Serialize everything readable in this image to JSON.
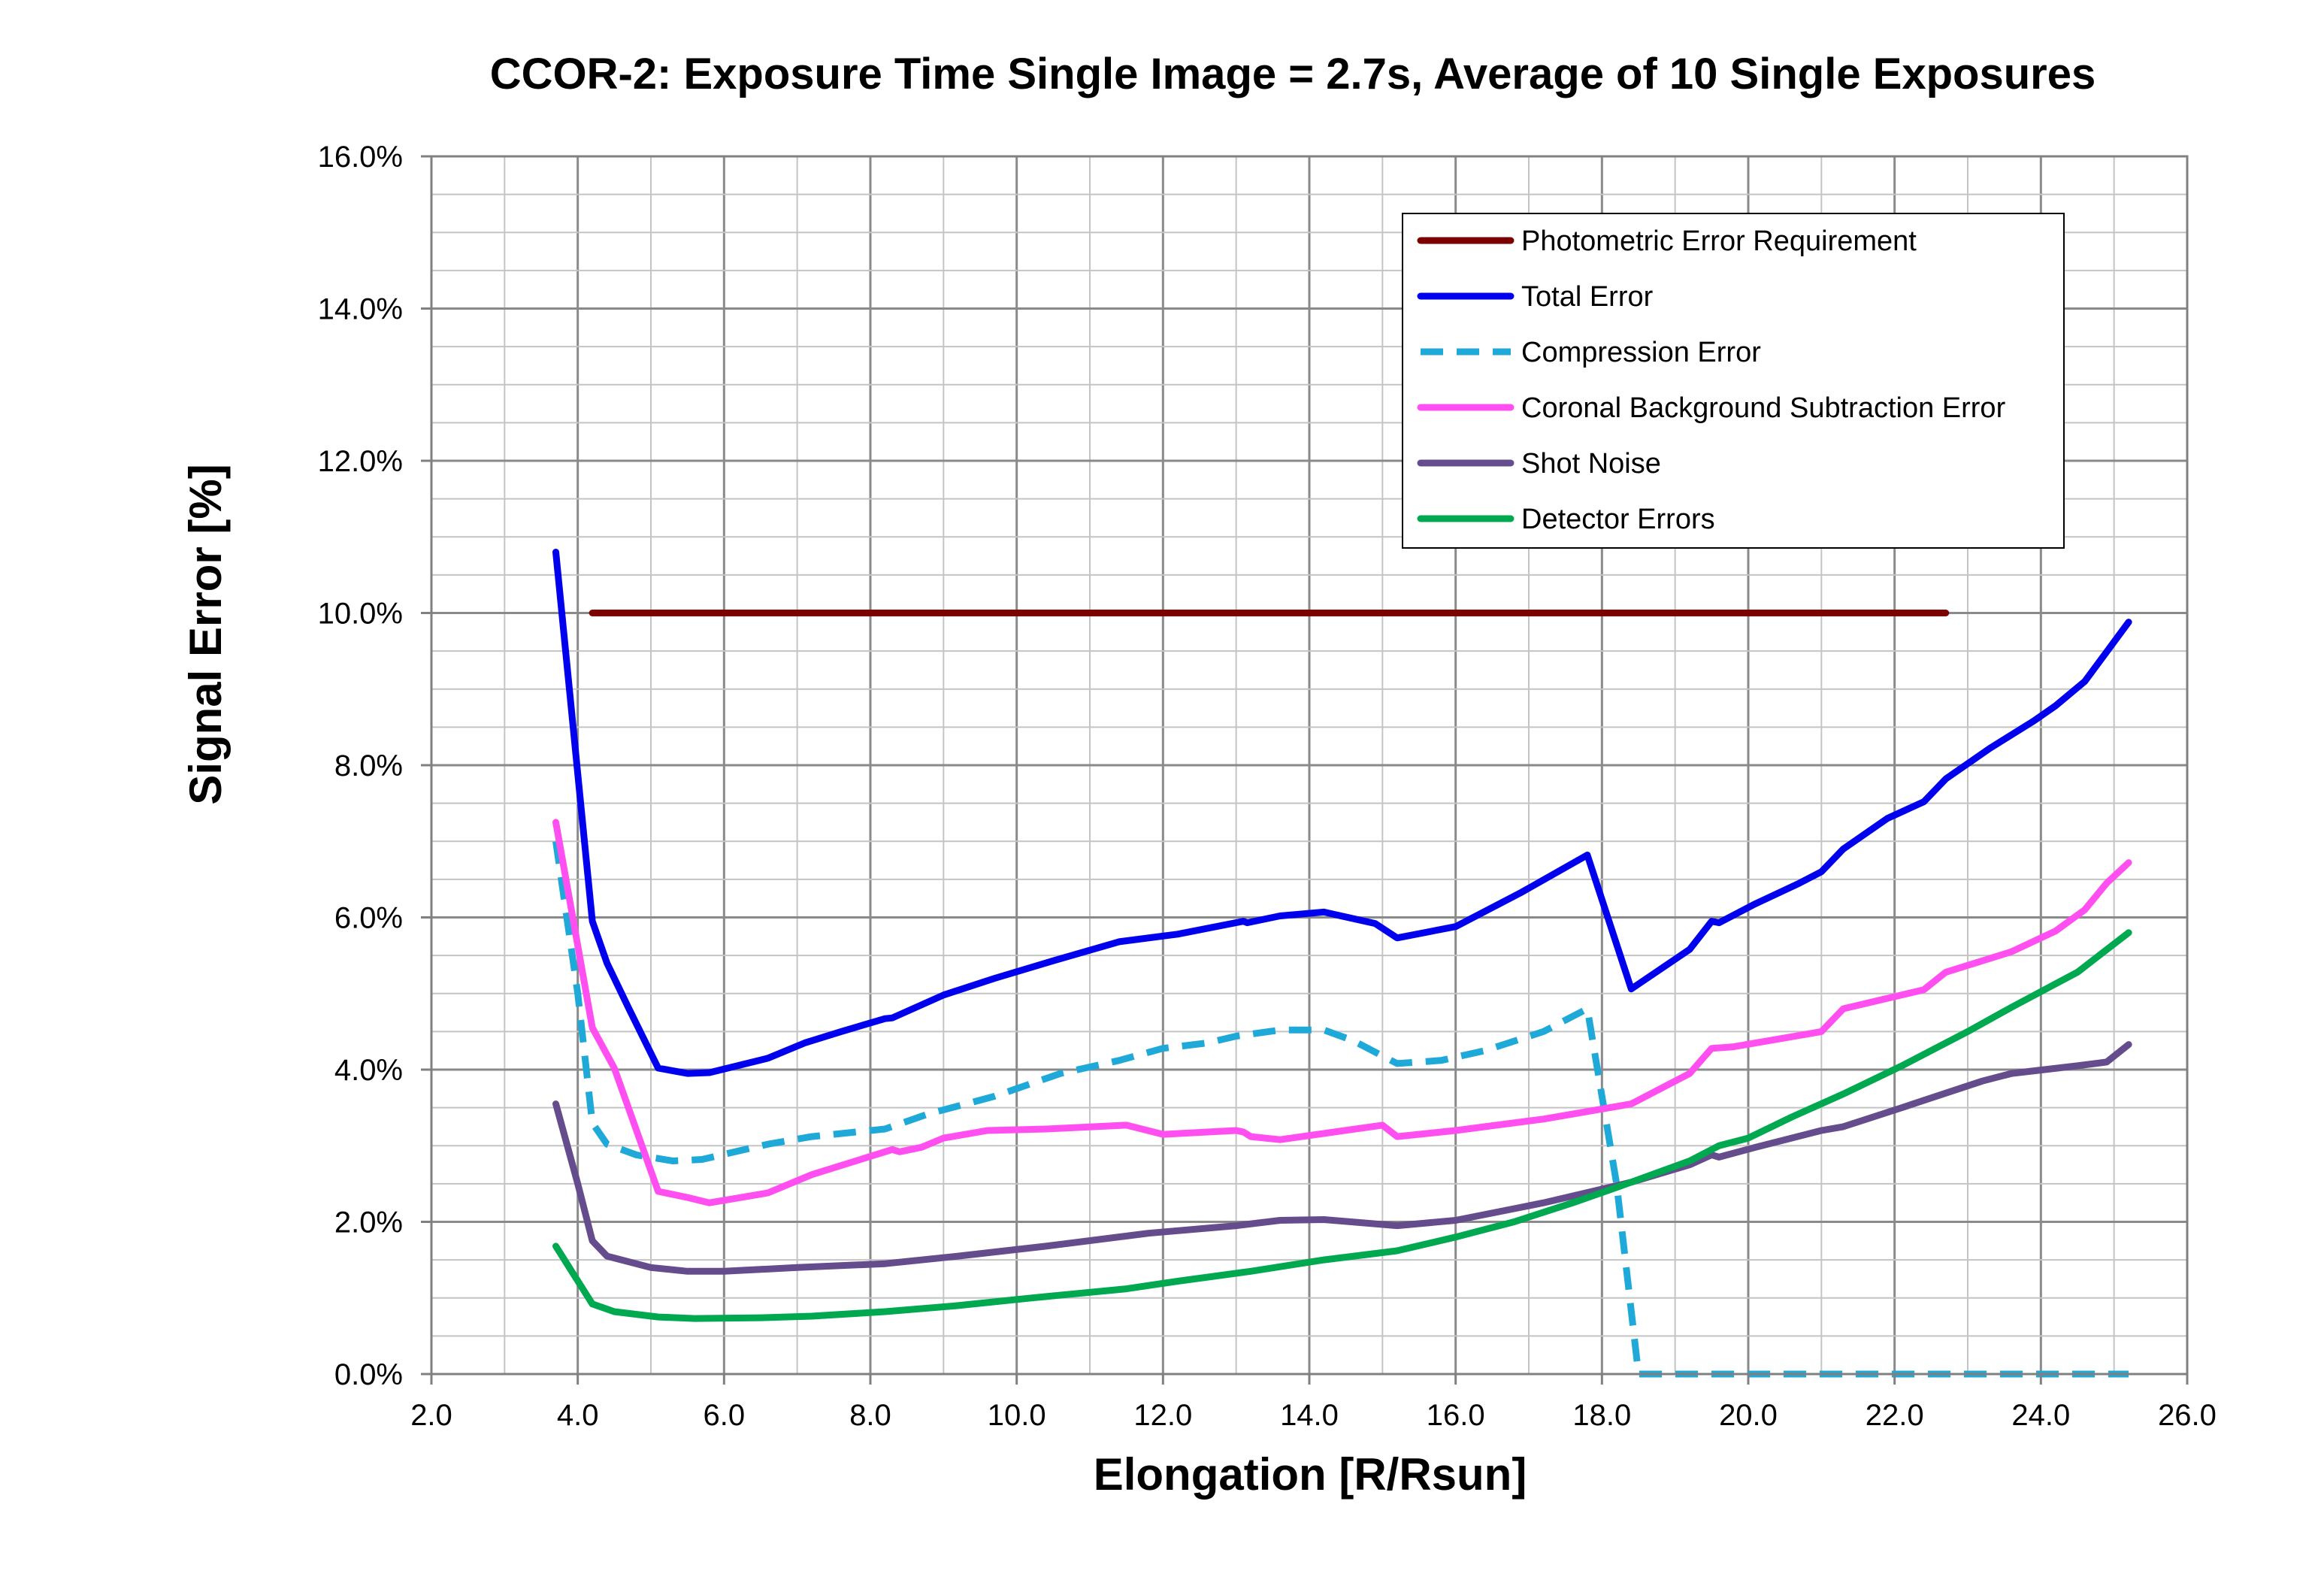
{
  "chart_data": {
    "type": "line",
    "title": "CCOR-2: Exposure Time Single Image = 2.7s, Average of 10 Single Exposures",
    "xlabel": "Elongation [R/Rsun]",
    "ylabel": "Signal Error [%]",
    "xlim": [
      2.0,
      26.0
    ],
    "ylim": [
      0.0,
      16.0
    ],
    "x_major_step": 2.0,
    "x_minor_step": 1.0,
    "y_major_step": 2.0,
    "y_minor_step": 0.5,
    "x_tick_labels": [
      "2.0",
      "4.0",
      "6.0",
      "8.0",
      "10.0",
      "12.0",
      "14.0",
      "16.0",
      "18.0",
      "20.0",
      "22.0",
      "24.0",
      "26.0"
    ],
    "y_tick_labels": [
      "0.0%",
      "2.0%",
      "4.0%",
      "6.0%",
      "8.0%",
      "10.0%",
      "12.0%",
      "14.0%",
      "16.0%"
    ],
    "grid": true,
    "legend_position": "top-right",
    "series": [
      {
        "name": "Photometric Error Requirement",
        "color": "#7b0000",
        "dashed": false,
        "points": [
          [
            4.2,
            10.0
          ],
          [
            22.7,
            10.0
          ]
        ]
      },
      {
        "name": "Total Error",
        "color": "#0000ee",
        "dashed": false,
        "points": [
          [
            3.7,
            10.8
          ],
          [
            4.2,
            5.95
          ],
          [
            4.4,
            5.4
          ],
          [
            4.7,
            4.8
          ],
          [
            5.1,
            4.02
          ],
          [
            5.5,
            3.95
          ],
          [
            5.8,
            3.96
          ],
          [
            6.6,
            4.15
          ],
          [
            7.1,
            4.35
          ],
          [
            7.6,
            4.5
          ],
          [
            8.2,
            4.67
          ],
          [
            8.3,
            4.68
          ],
          [
            9.0,
            4.98
          ],
          [
            9.7,
            5.2
          ],
          [
            10.5,
            5.43
          ],
          [
            11.4,
            5.68
          ],
          [
            12.2,
            5.78
          ],
          [
            13.1,
            5.95
          ],
          [
            13.15,
            5.93
          ],
          [
            13.6,
            6.02
          ],
          [
            14.2,
            6.07
          ],
          [
            14.9,
            5.92
          ],
          [
            15.2,
            5.73
          ],
          [
            16.0,
            5.88
          ],
          [
            16.9,
            6.33
          ],
          [
            17.8,
            6.82
          ],
          [
            18.4,
            5.06
          ],
          [
            19.2,
            5.58
          ],
          [
            19.5,
            5.95
          ],
          [
            19.6,
            5.93
          ],
          [
            20.1,
            6.18
          ],
          [
            20.7,
            6.45
          ],
          [
            21.0,
            6.6
          ],
          [
            21.3,
            6.9
          ],
          [
            21.9,
            7.3
          ],
          [
            22.4,
            7.52
          ],
          [
            22.7,
            7.82
          ],
          [
            23.3,
            8.22
          ],
          [
            23.9,
            8.58
          ],
          [
            24.2,
            8.78
          ],
          [
            24.6,
            9.1
          ],
          [
            25.2,
            9.88
          ]
        ]
      },
      {
        "name": "Compression Error",
        "color": "#1fa9d8",
        "dashed": true,
        "points": [
          [
            3.7,
            7.0
          ],
          [
            4.0,
            5.0
          ],
          [
            4.2,
            3.3
          ],
          [
            4.4,
            3.02
          ],
          [
            4.8,
            2.88
          ],
          [
            5.3,
            2.8
          ],
          [
            5.7,
            2.82
          ],
          [
            6.6,
            3.02
          ],
          [
            7.2,
            3.12
          ],
          [
            8.2,
            3.22
          ],
          [
            8.8,
            3.42
          ],
          [
            9.7,
            3.65
          ],
          [
            10.6,
            3.95
          ],
          [
            11.4,
            4.12
          ],
          [
            12.0,
            4.28
          ],
          [
            12.6,
            4.35
          ],
          [
            13.0,
            4.44
          ],
          [
            13.6,
            4.52
          ],
          [
            14.2,
            4.52
          ],
          [
            14.6,
            4.38
          ],
          [
            15.2,
            4.08
          ],
          [
            15.8,
            4.12
          ],
          [
            16.4,
            4.25
          ],
          [
            17.2,
            4.5
          ],
          [
            17.8,
            4.8
          ],
          [
            18.2,
            2.5
          ],
          [
            18.5,
            0.0
          ],
          [
            25.2,
            0.0
          ]
        ]
      },
      {
        "name": "Coronal Background Subtraction Error",
        "color": "#ff4ff0",
        "dashed": false,
        "points": [
          [
            3.7,
            7.25
          ],
          [
            4.2,
            4.55
          ],
          [
            4.5,
            4.02
          ],
          [
            5.1,
            2.4
          ],
          [
            5.5,
            2.32
          ],
          [
            5.8,
            2.25
          ],
          [
            6.6,
            2.38
          ],
          [
            7.2,
            2.62
          ],
          [
            7.8,
            2.8
          ],
          [
            8.3,
            2.95
          ],
          [
            8.4,
            2.92
          ],
          [
            8.7,
            2.98
          ],
          [
            9.0,
            3.1
          ],
          [
            9.6,
            3.2
          ],
          [
            10.4,
            3.22
          ],
          [
            11.5,
            3.27
          ],
          [
            12.0,
            3.15
          ],
          [
            13.0,
            3.2
          ],
          [
            13.1,
            3.18
          ],
          [
            13.2,
            3.12
          ],
          [
            13.6,
            3.08
          ],
          [
            15.0,
            3.27
          ],
          [
            15.2,
            3.12
          ],
          [
            16.0,
            3.2
          ],
          [
            17.2,
            3.35
          ],
          [
            18.4,
            3.55
          ],
          [
            19.2,
            3.95
          ],
          [
            19.5,
            4.28
          ],
          [
            19.8,
            4.3
          ],
          [
            21.0,
            4.5
          ],
          [
            21.3,
            4.8
          ],
          [
            22.4,
            5.05
          ],
          [
            22.7,
            5.28
          ],
          [
            23.6,
            5.55
          ],
          [
            24.2,
            5.82
          ],
          [
            24.6,
            6.1
          ],
          [
            24.9,
            6.45
          ],
          [
            25.2,
            6.72
          ]
        ]
      },
      {
        "name": "Shot Noise",
        "color": "#654c8c",
        "dashed": false,
        "points": [
          [
            3.7,
            3.55
          ],
          [
            4.0,
            2.5
          ],
          [
            4.2,
            1.75
          ],
          [
            4.4,
            1.55
          ],
          [
            5.0,
            1.4
          ],
          [
            5.5,
            1.35
          ],
          [
            6.0,
            1.35
          ],
          [
            7.0,
            1.4
          ],
          [
            8.2,
            1.45
          ],
          [
            9.2,
            1.55
          ],
          [
            10.4,
            1.68
          ],
          [
            11.8,
            1.85
          ],
          [
            13.0,
            1.95
          ],
          [
            13.6,
            2.02
          ],
          [
            14.2,
            2.03
          ],
          [
            15.2,
            1.95
          ],
          [
            16.0,
            2.02
          ],
          [
            17.2,
            2.25
          ],
          [
            18.4,
            2.52
          ],
          [
            19.2,
            2.75
          ],
          [
            19.5,
            2.88
          ],
          [
            19.6,
            2.85
          ],
          [
            20.1,
            2.98
          ],
          [
            21.0,
            3.2
          ],
          [
            21.3,
            3.25
          ],
          [
            22.1,
            3.5
          ],
          [
            23.2,
            3.85
          ],
          [
            23.6,
            3.95
          ],
          [
            24.5,
            4.05
          ],
          [
            24.9,
            4.1
          ],
          [
            25.2,
            4.33
          ]
        ]
      },
      {
        "name": "Detector Errors",
        "color": "#00a84f",
        "dashed": false,
        "points": [
          [
            3.7,
            1.68
          ],
          [
            4.2,
            0.92
          ],
          [
            4.5,
            0.82
          ],
          [
            5.1,
            0.75
          ],
          [
            5.6,
            0.73
          ],
          [
            6.5,
            0.74
          ],
          [
            7.2,
            0.76
          ],
          [
            8.2,
            0.82
          ],
          [
            9.2,
            0.9
          ],
          [
            10.2,
            1.0
          ],
          [
            11.5,
            1.12
          ],
          [
            12.2,
            1.22
          ],
          [
            13.2,
            1.35
          ],
          [
            14.2,
            1.5
          ],
          [
            15.2,
            1.62
          ],
          [
            16.0,
            1.8
          ],
          [
            16.8,
            2.0
          ],
          [
            17.6,
            2.25
          ],
          [
            18.4,
            2.52
          ],
          [
            19.2,
            2.8
          ],
          [
            19.6,
            3.0
          ],
          [
            20.0,
            3.1
          ],
          [
            20.6,
            3.38
          ],
          [
            21.3,
            3.68
          ],
          [
            22.1,
            4.05
          ],
          [
            23.0,
            4.5
          ],
          [
            23.6,
            4.82
          ],
          [
            24.5,
            5.28
          ],
          [
            25.2,
            5.8
          ]
        ]
      }
    ]
  }
}
